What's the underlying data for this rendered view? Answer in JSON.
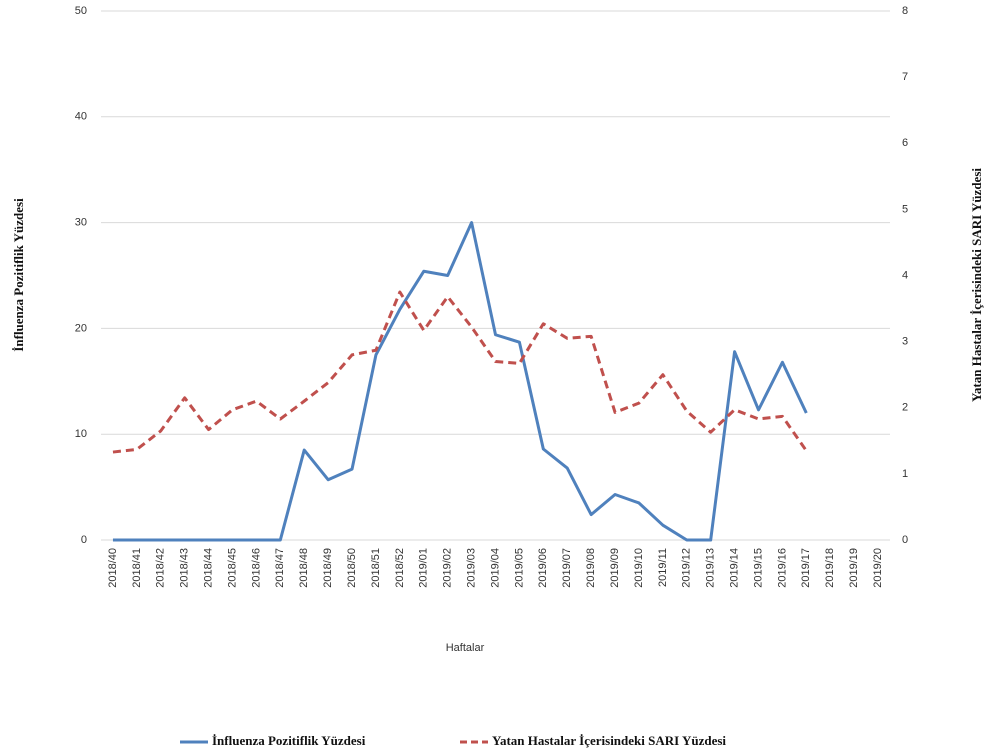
{
  "chart_data": {
    "type": "line",
    "x_label": "Haftalar",
    "y_label": "İnfluenza  Pozitiflik Yüzdesi",
    "y2_label": "Yatan Hastalar İçerisindeki  SARI Yüzdesi",
    "categories": [
      "2018/40",
      "2018/41",
      "2018/42",
      "2018/43",
      "2018/44",
      "2018/45",
      "2018/46",
      "2018/47",
      "2018/48",
      "2018/49",
      "2018/50",
      "2018/51",
      "2018/52",
      "2019/01",
      "2019/02",
      "2019/03",
      "2019/04",
      "2019/05",
      "2019/06",
      "2019/07",
      "2019/08",
      "2019/09",
      "2019/10",
      "2019/11",
      "2019/12",
      "2019/13",
      "2019/14",
      "2019/15",
      "2019/16",
      "2019/17",
      "2019/18",
      "2019/19",
      "2019/20"
    ],
    "series": [
      {
        "name": "İnfluenza Pozitiflik Yüzdesi",
        "color": "#4f81bd",
        "dash": false,
        "values": [
          0,
          0,
          0,
          0,
          0,
          0,
          0,
          0,
          8.5,
          5.7,
          6.7,
          17.5,
          21.8,
          25.4,
          25,
          30,
          19.4,
          18.7,
          8.6,
          6.8,
          2.4,
          4.3,
          3.5,
          1.4,
          0,
          0,
          17.8,
          12.3,
          16.8,
          12,
          null,
          null,
          null
        ]
      },
      {
        "name": "Yatan Hastalar İçerisindeki SARI Yüzdesi",
        "color": "#c0504d",
        "dash": true,
        "axis": "y2",
        "values": [
          1.33,
          1.37,
          1.65,
          2.15,
          1.67,
          1.97,
          2.1,
          1.83,
          2.1,
          2.38,
          2.8,
          2.87,
          3.75,
          3.17,
          3.68,
          3.22,
          2.7,
          2.67,
          3.27,
          3.05,
          3.08,
          1.93,
          2.07,
          2.5,
          1.95,
          1.63,
          1.97,
          1.83,
          1.87,
          1.35,
          null,
          null,
          null
        ]
      }
    ],
    "ylim": [
      0,
      50
    ],
    "yticks": [
      0,
      10,
      20,
      30,
      40,
      50
    ],
    "y2lim": [
      0,
      8
    ],
    "y2ticks": [
      0,
      1,
      2,
      3,
      4,
      5,
      6,
      7,
      8
    ],
    "grid": true,
    "legend": "bottom"
  }
}
